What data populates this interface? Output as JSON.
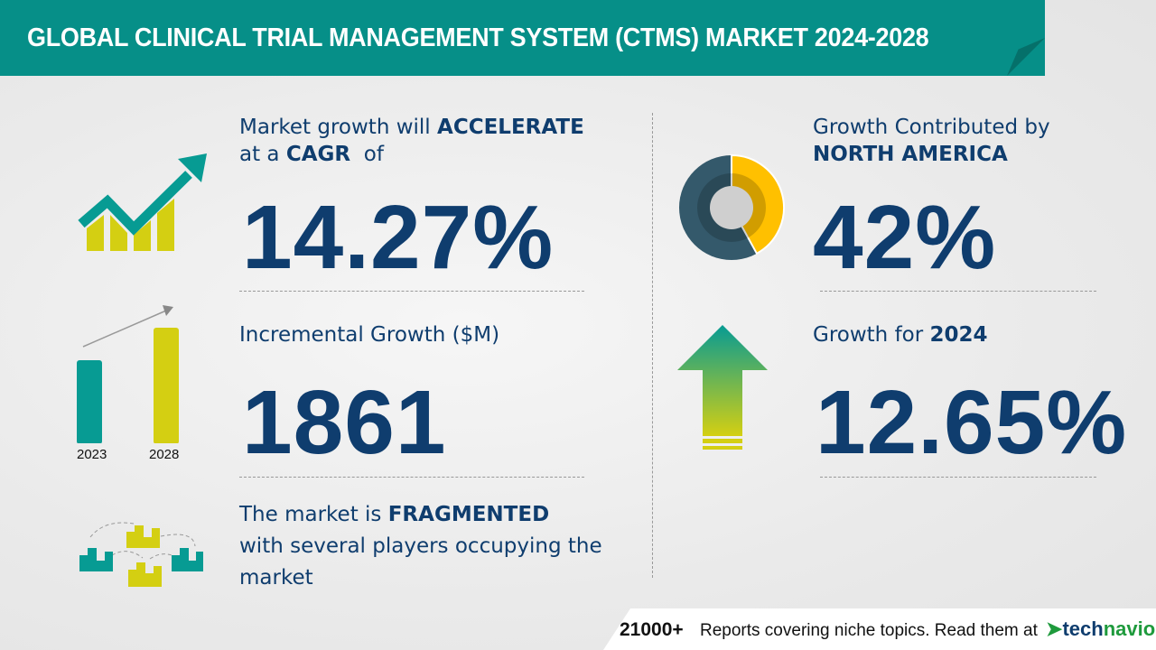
{
  "header": {
    "title": "GLOBAL CLINICAL TRIAL MANAGEMENT SYSTEM (CTMS) MARKET 2024-2028"
  },
  "cagr": {
    "line1_pre": "Market growth will ",
    "line1_bold": "ACCELERATE",
    "line2_pre": "at a ",
    "line2_bold": "CAGR",
    "line2_post": "  of",
    "value": "14.27%",
    "icon": "growth-chart-arrow-icon"
  },
  "incremental": {
    "label": "Incremental Growth ($M)",
    "value": "1861",
    "bar_labels": [
      "2023",
      "2028"
    ],
    "colors": {
      "2023": "#079b93",
      "2028": "#d4cf12"
    }
  },
  "fragmented": {
    "line1_pre": "The market is ",
    "line1_bold": "FRAGMENTED",
    "line2": "with several players occupying the",
    "line3": "market",
    "icon": "buildings-network-icon"
  },
  "region": {
    "line1": "Growth Contributed by",
    "line2": "NORTH AMERICA",
    "value": "42%",
    "share": 42,
    "colors": {
      "share": "#ffc000",
      "rest": "#34596b"
    }
  },
  "yoy": {
    "label_pre": "Growth for ",
    "label_bold": "2024",
    "value": "12.65%",
    "icon": "up-arrow-icon"
  },
  "footer": {
    "count": "21000+",
    "text": "Reports covering niche topics. Read them at",
    "brand_a": "tech",
    "brand_b": "navio"
  },
  "colors": {
    "teal": "#068f88",
    "navy": "#0f3d6e",
    "lime": "#d4cf12"
  }
}
